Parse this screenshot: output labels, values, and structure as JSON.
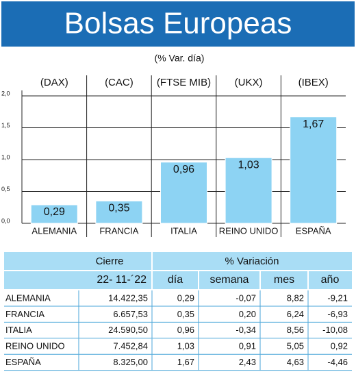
{
  "chart_data": {
    "type": "bar",
    "title": "Bolsas Europeas",
    "subtitle": "(% Var. día)",
    "index_labels": [
      "(DAX)",
      "(CAC)",
      "(FTSE MIB)",
      "(UKX)",
      "(IBEX)"
    ],
    "categories": [
      "ALEMANIA",
      "FRANCIA",
      "ITALIA",
      "REINO UNIDO",
      "ESPAÑA"
    ],
    "values": [
      0.29,
      0.35,
      0.96,
      1.03,
      1.67
    ],
    "value_labels": [
      "0,29",
      "0,35",
      "0,96",
      "1,03",
      "1,67"
    ],
    "color": "#8dd3f3",
    "ylim": [
      0,
      2
    ],
    "yticks": [
      {
        "value": 0,
        "label": "0,0"
      },
      {
        "value": 0.5,
        "label": "0,5"
      },
      {
        "value": 1,
        "label": "1,0"
      },
      {
        "value": 1.5,
        "label": "1,5"
      },
      {
        "value": 2,
        "label": "2,0"
      }
    ],
    "grid": true
  },
  "table": {
    "group_headers": [
      "Cierre",
      "% Variación"
    ],
    "columns": [
      "22- 11-´22",
      "día",
      "semana",
      "mes",
      "año"
    ],
    "rows": [
      [
        "ALEMANIA",
        "14.422,35",
        "0,29",
        "-0,07",
        "8,82",
        "-9,21"
      ],
      [
        "FRANCIA",
        "6.657,53",
        "0,35",
        "0,20",
        "6,24",
        "-6,93"
      ],
      [
        "ITALIA",
        "24.590,50",
        "0,96",
        "-0,34",
        "8,56",
        "-10,08"
      ],
      [
        "REINO UNIDO",
        "7.452,84",
        "1,03",
        "0,91",
        "5,05",
        "0,92"
      ],
      [
        "ESPAÑA",
        "8.325,00",
        "1,67",
        "2,43",
        "4,63",
        "-4,46"
      ]
    ]
  }
}
